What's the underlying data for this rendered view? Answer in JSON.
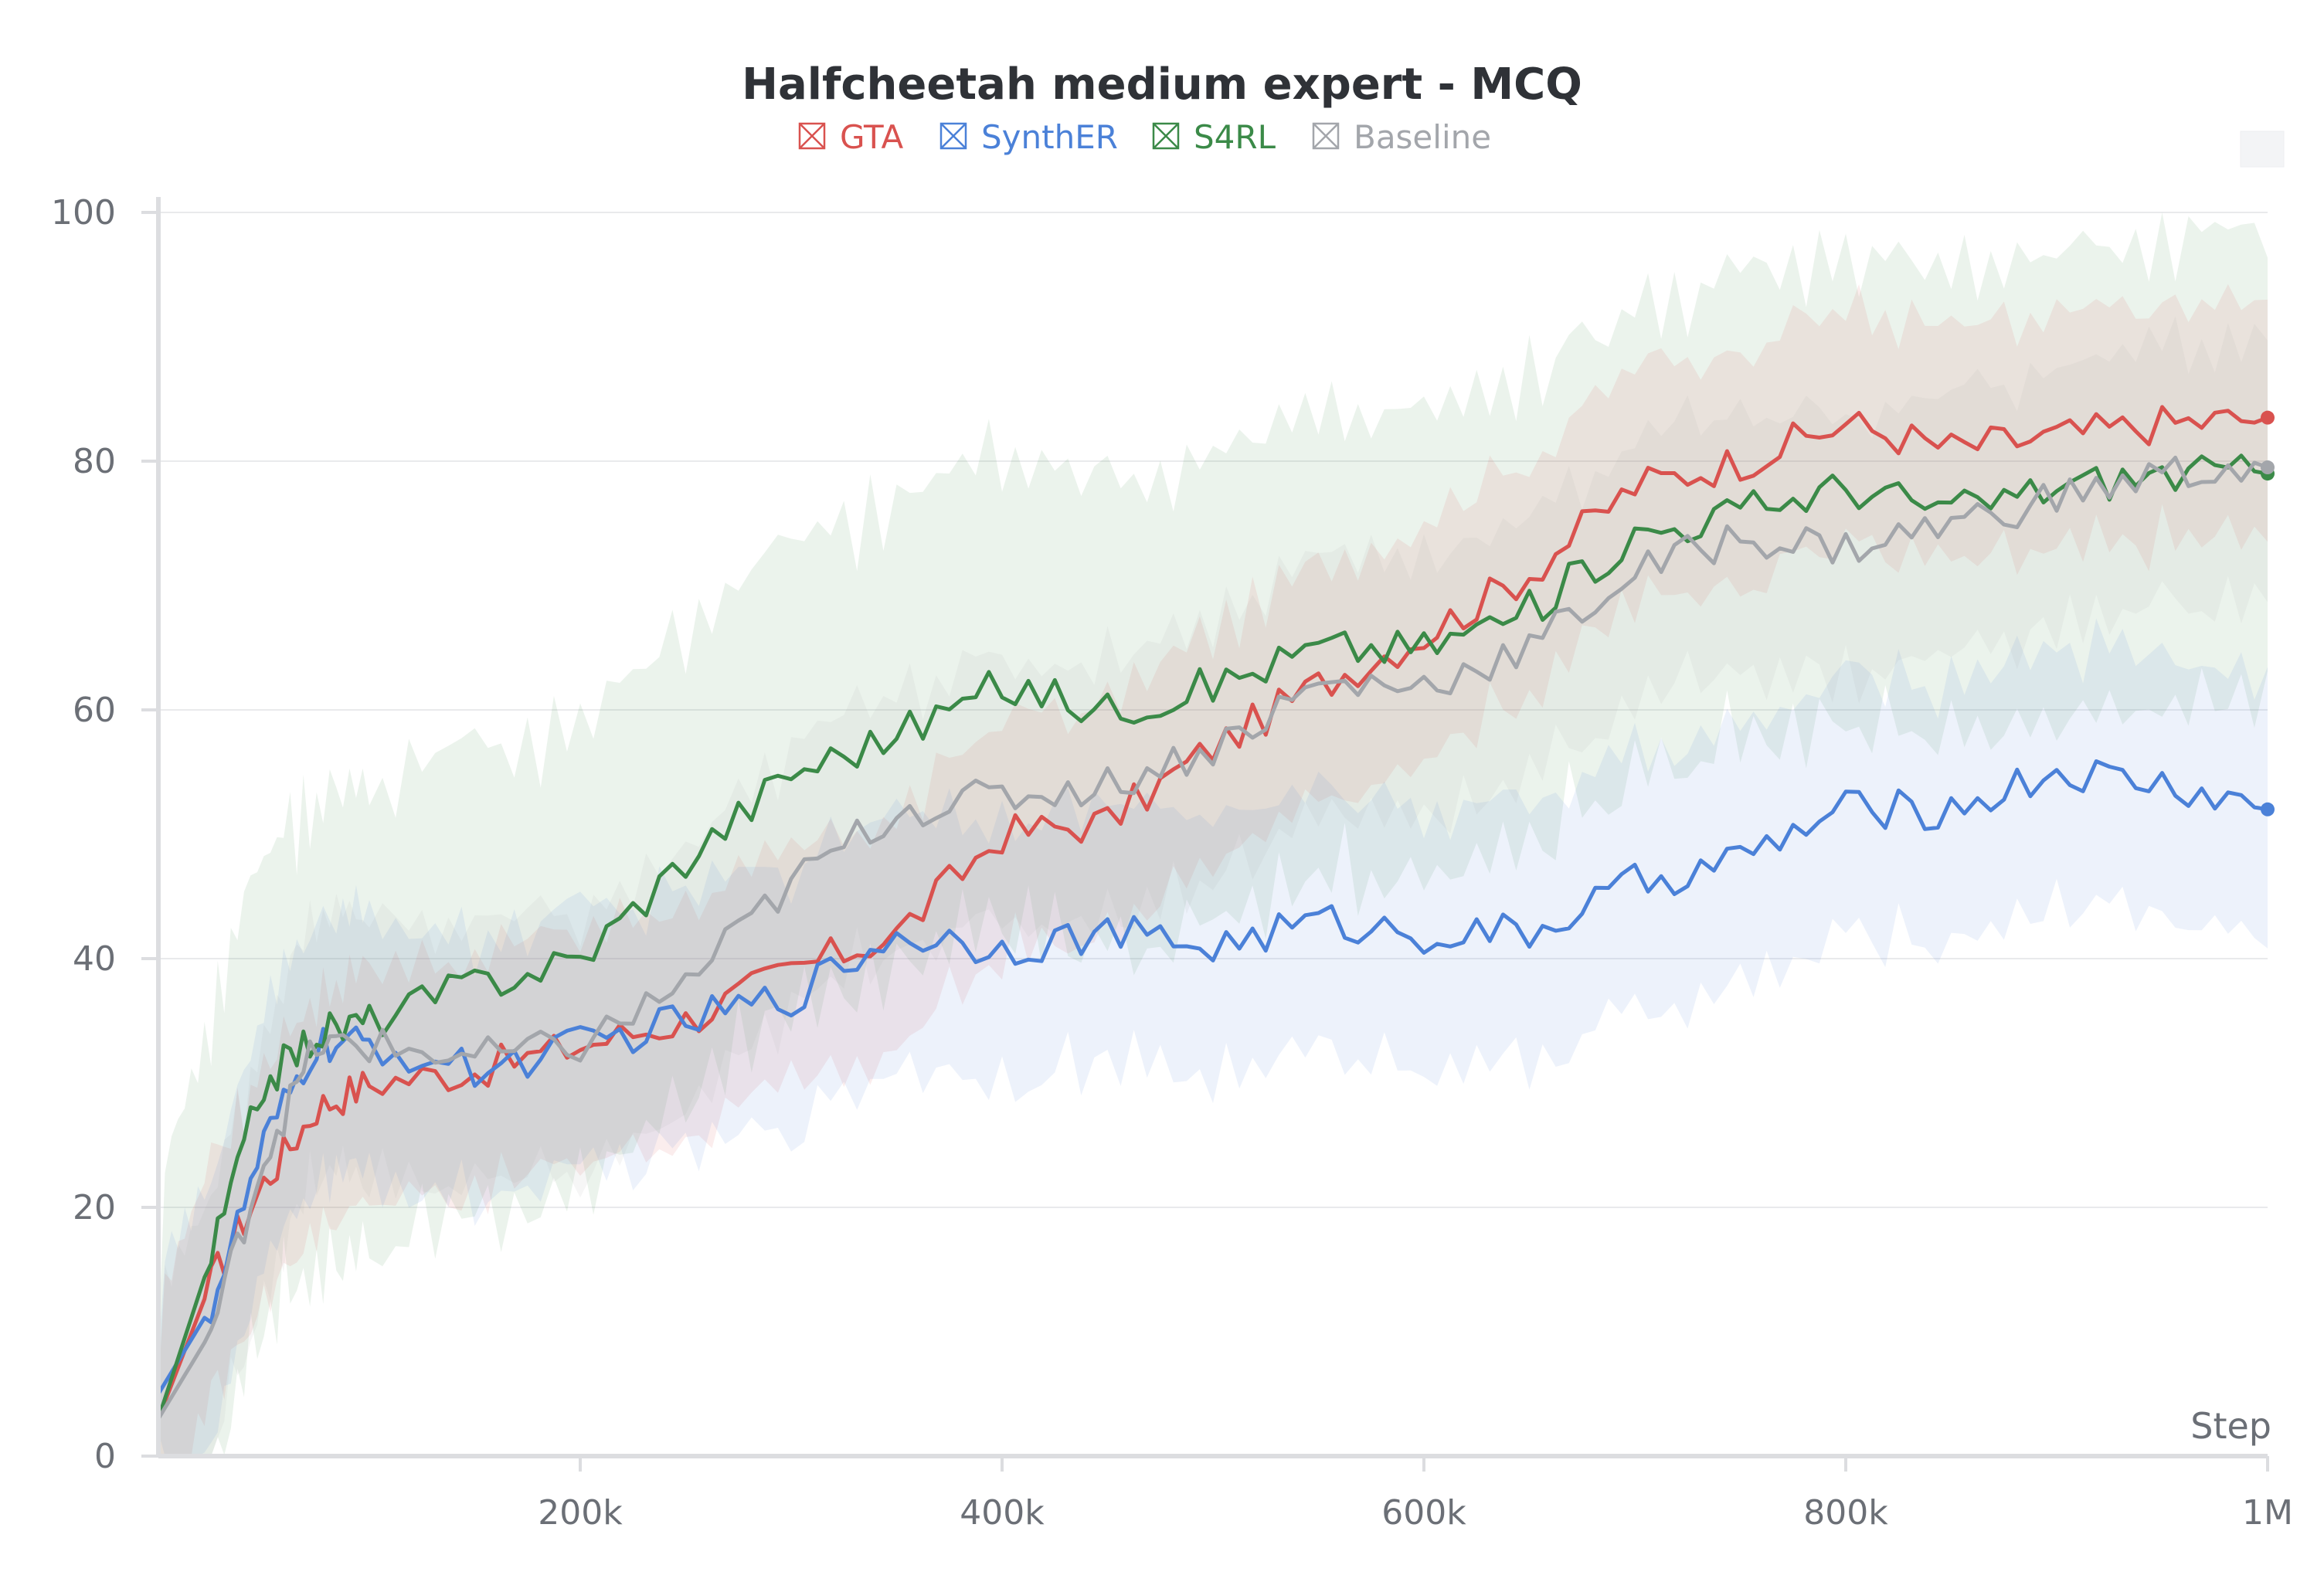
{
  "chart_data": {
    "type": "line",
    "title": "Halfcheetah medium expert - MCQ",
    "xlabel": "Step",
    "ylabel": "",
    "xlim": [
      0,
      1000000
    ],
    "ylim": [
      0,
      100
    ],
    "x_ticks": [
      {
        "value": 200000,
        "label": "200k"
      },
      {
        "value": 400000,
        "label": "400k"
      },
      {
        "value": 600000,
        "label": "600k"
      },
      {
        "value": 800000,
        "label": "800k"
      },
      {
        "value": 1000000,
        "label": "1M"
      }
    ],
    "y_ticks": [
      {
        "value": 0,
        "label": "0"
      },
      {
        "value": 20,
        "label": "20"
      },
      {
        "value": 40,
        "label": "40"
      },
      {
        "value": 60,
        "label": "60"
      },
      {
        "value": 80,
        "label": "80"
      },
      {
        "value": 100,
        "label": "100"
      }
    ],
    "grid": true,
    "legend_position": "top-center",
    "x": [
      0,
      25000,
      50000,
      75000,
      100000,
      150000,
      200000,
      250000,
      300000,
      350000,
      400000,
      450000,
      500000,
      550000,
      600000,
      650000,
      700000,
      750000,
      800000,
      850000,
      900000,
      950000,
      1000000
    ],
    "series": [
      {
        "name": "GTA",
        "color": "#d9524f",
        "values": [
          3,
          14,
          22,
          28,
          30,
          31,
          33,
          35,
          39,
          42,
          50,
          51,
          57,
          62,
          66,
          71,
          78,
          80,
          83,
          81,
          82,
          83,
          83.5
        ],
        "band": 9
      },
      {
        "name": "SynthER",
        "color": "#4b81d8",
        "values": [
          5,
          12,
          25,
          33,
          33,
          31,
          33,
          35,
          37,
          42,
          41,
          42,
          41,
          43,
          42,
          42,
          46,
          48,
          52,
          52,
          55,
          54,
          52
        ],
        "band": 10
      },
      {
        "name": "S4RL",
        "color": "#3b8a48",
        "values": [
          3,
          16,
          30,
          34,
          35,
          38,
          40,
          48,
          55,
          58,
          62,
          60,
          62,
          65,
          65,
          68,
          74,
          76,
          78,
          76,
          78,
          79,
          79
        ],
        "band": 18
      },
      {
        "name": "Baseline",
        "color": "#a3a6ab",
        "values": [
          3,
          10,
          24,
          33,
          33,
          32,
          33,
          38,
          46,
          52,
          53,
          54,
          57,
          62,
          62,
          65,
          71,
          74,
          73,
          75,
          77,
          79,
          79.5
        ],
        "band": 10
      }
    ]
  }
}
